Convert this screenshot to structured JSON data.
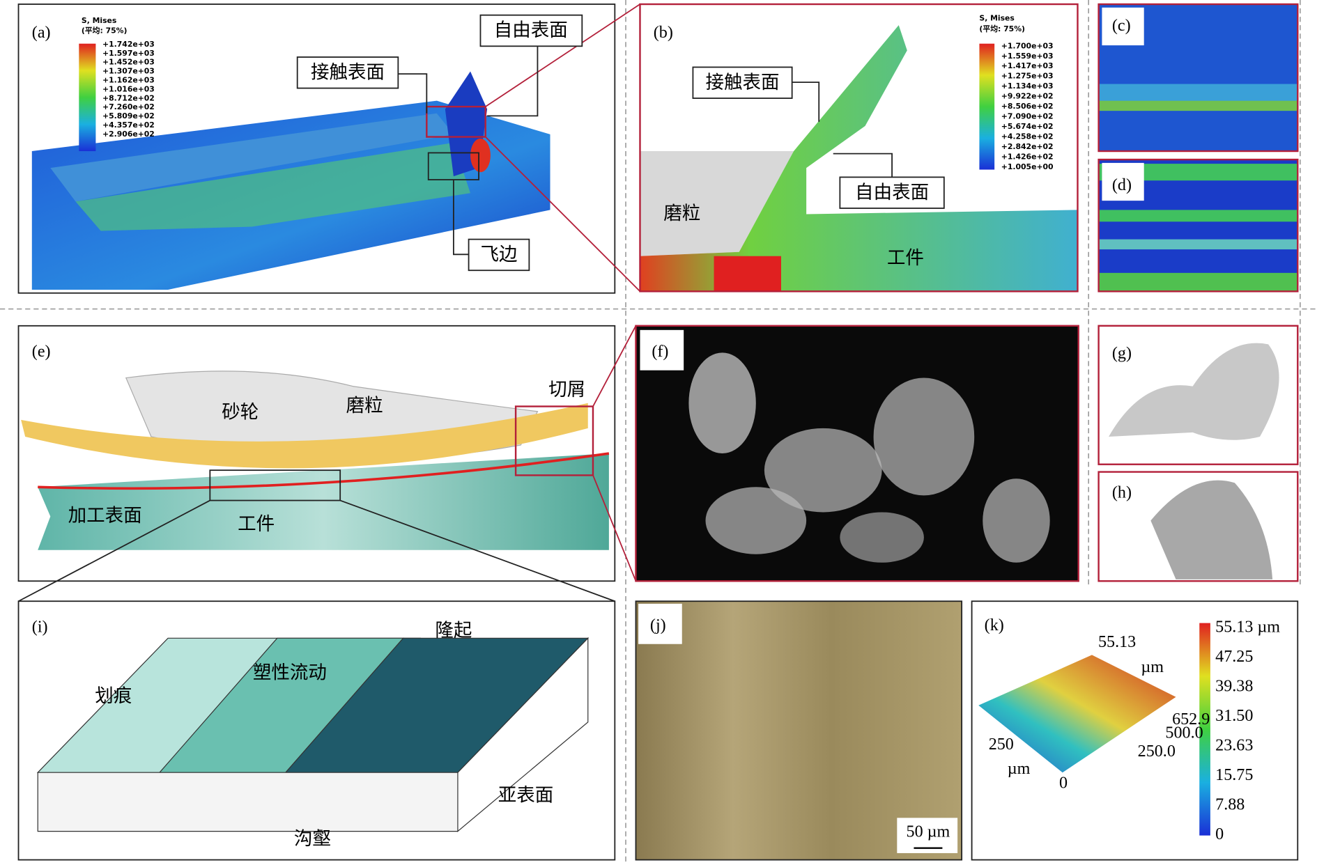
{
  "panels": {
    "a": {
      "label": "(a)",
      "legend_title": "S, Mises",
      "legend_subtitle": "(平均: 75%)",
      "legend_values": [
        "+1.742e+03",
        "+1.597e+03",
        "+1.452e+03",
        "+1.307e+03",
        "+1.162e+03",
        "+1.016e+03",
        "+8.712e+02",
        "+7.260e+02",
        "+5.809e+02",
        "+4.357e+02",
        "+2.906e+02"
      ],
      "callouts": [
        "自由表面",
        "接触表面",
        "飞边"
      ]
    },
    "b": {
      "label": "(b)",
      "legend_title": "S, Mises",
      "legend_subtitle": "(平均: 75%)",
      "legend_values": [
        "+1.700e+03",
        "+1.559e+03",
        "+1.417e+03",
        "+1.275e+03",
        "+1.134e+03",
        "+9.922e+02",
        "+8.506e+02",
        "+7.090e+02",
        "+5.674e+02",
        "+4.258e+02",
        "+2.842e+02",
        "+1.426e+02",
        "+1.005e+00"
      ],
      "callouts": [
        "接触表面",
        "自由表面"
      ],
      "labels": [
        "磨粒",
        "工件"
      ]
    },
    "c": {
      "label": "(c)"
    },
    "d": {
      "label": "(d)"
    },
    "e": {
      "label": "(e)",
      "labels": [
        "砂轮",
        "磨粒",
        "切屑",
        "加工表面",
        "工件"
      ]
    },
    "f": {
      "label": "(f)"
    },
    "g": {
      "label": "(g)"
    },
    "h": {
      "label": "(h)"
    },
    "i": {
      "label": "(i)",
      "labels": [
        "划痕",
        "塑性流动",
        "隆起",
        "亚表面",
        "沟壑"
      ]
    },
    "j": {
      "label": "(j)",
      "scale_bar": "50 µm"
    },
    "k": {
      "label": "(k)",
      "axis_labels": [
        "55.13",
        "µm",
        "652.9",
        "500.0",
        "250.0",
        "250",
        "µm",
        "0"
      ],
      "colorbar": [
        "55.13 µm",
        "47.25",
        "39.38",
        "31.50",
        "23.63",
        "15.75",
        "7.88",
        "0"
      ]
    }
  }
}
